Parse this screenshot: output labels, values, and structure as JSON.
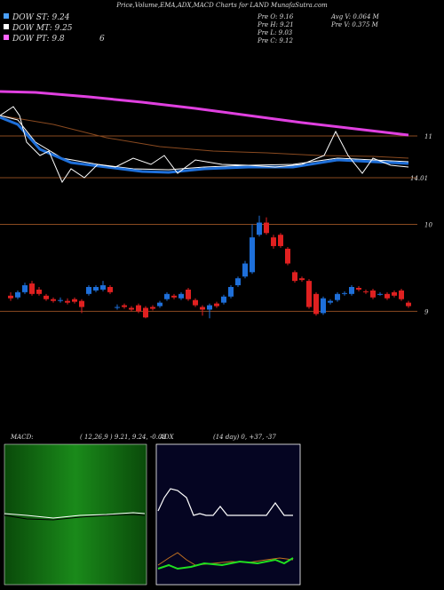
{
  "header": {
    "title": "Price,Volume,EMA,ADX,MACD Charts for LAND MunafaSutra.com"
  },
  "legend": {
    "dow_st": "DOW ST: 9.24",
    "dow_mt": "DOW MT: 9.25",
    "dow_pt": "DOW PT: 9.8",
    "count": "6"
  },
  "stats": {
    "pre_o": "Pre  O: 9.16",
    "pre_h": "Pre  H: 9.21",
    "pre_l": "Pre  L: 9.03",
    "pre_c": "Pre  C: 9.12",
    "avg_v": "Avg  V: 0.064  M",
    "pre_v": "Pre   V: 0.375  M"
  },
  "ema_panel": {
    "labels": [
      11,
      14.01
    ]
  },
  "chart_data": {
    "type": "candlestick",
    "ylim": [
      8.8,
      10.25
    ],
    "yticks": [
      9,
      10
    ],
    "up_color": "#1e6fd9",
    "down_color": "#e02020",
    "candles": [
      [
        9.18,
        9.22,
        9.12,
        9.15
      ],
      [
        9.16,
        9.24,
        9.14,
        9.22
      ],
      [
        9.22,
        9.33,
        9.2,
        9.3
      ],
      [
        9.32,
        9.35,
        9.18,
        9.2
      ],
      [
        9.25,
        9.28,
        9.18,
        9.2
      ],
      [
        9.18,
        9.2,
        9.12,
        9.14
      ],
      [
        9.14,
        9.16,
        9.1,
        9.12
      ],
      [
        9.13,
        9.16,
        9.1,
        9.13
      ],
      [
        9.12,
        9.15,
        9.08,
        9.1
      ],
      [
        9.14,
        9.16,
        9.09,
        9.11
      ],
      [
        9.12,
        9.14,
        8.98,
        9.05
      ],
      [
        9.2,
        9.3,
        9.18,
        9.28
      ],
      [
        9.24,
        9.3,
        9.22,
        9.28
      ],
      [
        9.25,
        9.35,
        9.23,
        9.3
      ],
      [
        9.28,
        9.3,
        9.2,
        9.22
      ],
      [
        9.05,
        9.08,
        9.02,
        9.05
      ],
      [
        9.07,
        9.09,
        9.03,
        9.05
      ],
      [
        9.04,
        9.06,
        9.0,
        9.02
      ],
      [
        9.07,
        9.09,
        8.98,
        9.0
      ],
      [
        9.04,
        9.06,
        8.92,
        8.93
      ],
      [
        9.05,
        9.07,
        9.01,
        9.03
      ],
      [
        9.06,
        9.12,
        9.04,
        9.1
      ],
      [
        9.14,
        9.22,
        9.12,
        9.2
      ],
      [
        9.18,
        9.2,
        9.14,
        9.16
      ],
      [
        9.15,
        9.22,
        9.13,
        9.2
      ],
      [
        9.25,
        9.27,
        9.12,
        9.14
      ],
      [
        9.13,
        9.15,
        9.05,
        9.07
      ],
      [
        9.05,
        9.07,
        8.95,
        9.02
      ],
      [
        9.02,
        9.09,
        8.92,
        9.07
      ],
      [
        9.09,
        9.11,
        9.04,
        9.06
      ],
      [
        9.1,
        9.19,
        9.08,
        9.17
      ],
      [
        9.17,
        9.3,
        9.15,
        9.28
      ],
      [
        9.3,
        9.4,
        9.28,
        9.38
      ],
      [
        9.4,
        9.58,
        9.38,
        9.55
      ],
      [
        9.45,
        10.0,
        9.43,
        9.85
      ],
      [
        9.88,
        10.1,
        9.86,
        10.02
      ],
      [
        10.02,
        10.08,
        9.88,
        9.9
      ],
      [
        9.85,
        9.88,
        9.72,
        9.75
      ],
      [
        9.88,
        9.9,
        9.73,
        9.75
      ],
      [
        9.72,
        9.74,
        9.53,
        9.55
      ],
      [
        9.45,
        9.47,
        9.33,
        9.35
      ],
      [
        9.38,
        9.4,
        9.34,
        9.36
      ],
      [
        9.35,
        9.37,
        9.03,
        9.05
      ],
      [
        9.2,
        9.22,
        8.95,
        8.97
      ],
      [
        8.98,
        9.17,
        8.96,
        9.15
      ],
      [
        9.1,
        9.14,
        9.08,
        9.12
      ],
      [
        9.13,
        9.22,
        9.11,
        9.2
      ],
      [
        9.2,
        9.23,
        9.18,
        9.21
      ],
      [
        9.2,
        9.3,
        9.18,
        9.28
      ],
      [
        9.27,
        9.29,
        9.23,
        9.25
      ],
      [
        9.23,
        9.25,
        9.2,
        9.22
      ],
      [
        9.24,
        9.26,
        9.14,
        9.16
      ],
      [
        9.2,
        9.22,
        9.18,
        9.2
      ],
      [
        9.2,
        9.22,
        9.13,
        9.15
      ],
      [
        9.22,
        9.24,
        9.16,
        9.18
      ],
      [
        9.24,
        9.26,
        9.12,
        9.14
      ],
      [
        9.1,
        9.12,
        9.04,
        9.06
      ]
    ]
  },
  "macd_panel": {
    "label": "MACD:",
    "params": "( 12,26,9 ) 9.21,  9.24,  -0.03"
  },
  "adx_panel": {
    "label": "ADX",
    "params": "(14  day) 0,  +37,  -37"
  }
}
